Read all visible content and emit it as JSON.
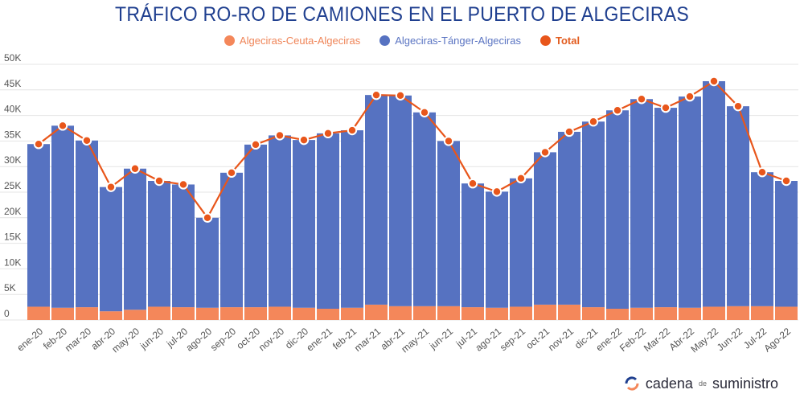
{
  "chart_data": {
    "type": "bar",
    "title": "TRÁFICO RO-RO DE CAMIONES EN EL PUERTO DE ALGECIRAS",
    "stacked": true,
    "categories": [
      "ene-20",
      "feb-20",
      "mar-20",
      "abr-20",
      "may-20",
      "jun-20",
      "jul-20",
      "ago-20",
      "sep-20",
      "oct-20",
      "nov-20",
      "dic-20",
      "ene-21",
      "feb-21",
      "mar-21",
      "abr-21",
      "may-21",
      "jun-21",
      "jul-21",
      "ago-21",
      "sep-21",
      "oct-21",
      "nov-21",
      "dic-21",
      "ene-22",
      "Feb-22",
      "Mar-22",
      "Abr-22",
      "May-22",
      "Jun-22",
      "Jul-22",
      "Ago-22"
    ],
    "series": [
      {
        "name": "Algeciras-Ceuta-Algeciras",
        "color": "#f4875a",
        "values": [
          2600,
          2400,
          2500,
          1700,
          2000,
          2600,
          2500,
          2400,
          2500,
          2500,
          2600,
          2400,
          2200,
          2400,
          3000,
          2700,
          2700,
          2700,
          2500,
          2400,
          2600,
          3000,
          3000,
          2500,
          2200,
          2400,
          2500,
          2400,
          2600,
          2700,
          2700,
          2600
        ]
      },
      {
        "name": "Algeciras-Tánger-Algeciras",
        "color": "#5672c1",
        "values": [
          31800,
          35600,
          32600,
          24300,
          27600,
          24600,
          24000,
          17600,
          26300,
          31800,
          33500,
          32800,
          34300,
          34700,
          41000,
          41200,
          37900,
          32300,
          24200,
          22700,
          25100,
          29800,
          33800,
          36300,
          38800,
          40800,
          39000,
          41300,
          44100,
          39100,
          26200,
          24600
        ]
      },
      {
        "name": "Total",
        "color": "#e8561b",
        "type": "line",
        "values": [
          34400,
          38000,
          35100,
          26000,
          29600,
          27200,
          26500,
          20000,
          28800,
          34300,
          36100,
          35200,
          36500,
          37100,
          44000,
          43900,
          40600,
          35000,
          26700,
          25100,
          27700,
          32800,
          36800,
          38800,
          41000,
          43200,
          41500,
          43700,
          46700,
          41800,
          28900,
          27200
        ]
      }
    ],
    "xlabel": "",
    "ylabel": "",
    "ylim": [
      0,
      50000
    ],
    "yticks": [
      0,
      5000,
      10000,
      15000,
      20000,
      25000,
      30000,
      35000,
      40000,
      45000,
      50000
    ],
    "ytick_labels": [
      "0",
      "5K",
      "10K",
      "15K",
      "20K",
      "25K",
      "30K",
      "35K",
      "40K",
      "45K",
      "50K"
    ],
    "legend_position": "top-center",
    "grid": true
  },
  "brand": {
    "part1": "cadena",
    "part2": "de",
    "part3": "suministro"
  }
}
